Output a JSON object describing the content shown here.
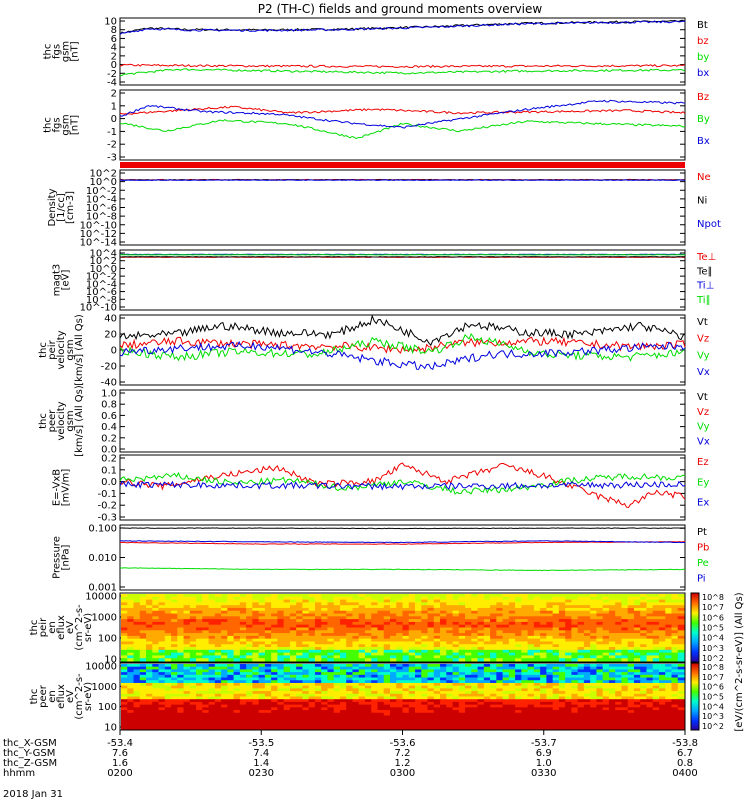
{
  "title": "P2 (TH-C) fields and ground moments overview",
  "date_label": "2018 Jan 31",
  "colors": {
    "black": "#000000",
    "red": "#ee0000",
    "green": "#00dd00",
    "blue": "#0000dd",
    "frame": "#000000"
  },
  "colorbar": {
    "label": "[eV/(cm^2-s-sr-eV)] (All Qs)",
    "ticks_top": [
      "10^8",
      "10^7",
      "10^6",
      "10^5",
      "10^4",
      "10^3",
      "10^2"
    ],
    "ticks_bottom": [
      "10^8",
      "10^7",
      "10^6",
      "10^5",
      "10^4",
      "10^3",
      "10^2"
    ]
  },
  "chart_data": [
    {
      "type": "line",
      "id": "fgs",
      "ylabel": [
        "thc",
        "fgs",
        "gsm",
        "[nT]"
      ],
      "yticks": [
        "10",
        "8",
        "6",
        "4",
        "2",
        "0",
        "-2",
        "-4"
      ],
      "ylim": [
        -4,
        10.5
      ],
      "series": [
        {
          "name": "Bt",
          "color": "black",
          "x": [
            0,
            0.05,
            0.12,
            0.25,
            0.4,
            0.55,
            0.7,
            0.85,
            1.0
          ],
          "y": [
            7.2,
            8.3,
            8.0,
            7.9,
            8.1,
            8.6,
            9.3,
            9.6,
            9.8
          ]
        },
        {
          "name": "bz",
          "color": "red",
          "x": [
            0,
            0.25,
            0.5,
            0.75,
            1.0
          ],
          "y": [
            0.3,
            0.1,
            0.0,
            0.1,
            0.2
          ]
        },
        {
          "name": "by",
          "color": "green",
          "x": [
            0,
            0.1,
            0.3,
            0.5,
            0.7,
            0.9,
            1.0
          ],
          "y": [
            -1.8,
            -0.6,
            -1.0,
            -1.4,
            -1.0,
            -0.8,
            -0.8
          ]
        },
        {
          "name": "bx",
          "color": "blue",
          "x": [
            0,
            0.05,
            0.12,
            0.25,
            0.4,
            0.55,
            0.7,
            0.85,
            1.0
          ],
          "y": [
            7.0,
            8.2,
            7.9,
            7.8,
            8.0,
            8.5,
            9.2,
            9.5,
            9.7
          ]
        }
      ]
    },
    {
      "type": "line",
      "id": "fgs_dsl",
      "ylabel": [
        "thc",
        "fgs",
        "gsm",
        "[nT]"
      ],
      "yticks": [
        "2",
        "1",
        "0",
        "-1",
        "-2",
        "-3"
      ],
      "ylim": [
        -3.6,
        2.2
      ],
      "series": [
        {
          "name": "Bz",
          "color": "red",
          "x": [
            0,
            0.1,
            0.2,
            0.3,
            0.45,
            0.6,
            0.75,
            0.9,
            1.0
          ],
          "y": [
            0.2,
            0.5,
            0.8,
            0.3,
            0.6,
            0.3,
            0.4,
            0.5,
            0.3
          ]
        },
        {
          "name": "By",
          "color": "green",
          "x": [
            0,
            0.08,
            0.18,
            0.3,
            0.42,
            0.5,
            0.6,
            0.72,
            0.85,
            1.0
          ],
          "y": [
            -0.5,
            -1.2,
            -0.3,
            -0.6,
            -1.8,
            -0.6,
            -1.2,
            -0.4,
            -0.6,
            -0.8
          ]
        },
        {
          "name": "Bx",
          "color": "blue",
          "x": [
            0,
            0.05,
            0.15,
            0.28,
            0.4,
            0.5,
            0.6,
            0.72,
            0.85,
            1.0
          ],
          "y": [
            0.0,
            0.9,
            0.4,
            0.2,
            -0.5,
            -0.9,
            -0.2,
            0.6,
            1.3,
            1.1
          ]
        }
      ]
    },
    {
      "type": "line",
      "id": "density",
      "ylabel": [
        "Density",
        "[1/cc]",
        "[cm-3]"
      ],
      "yticks": [
        "10^2",
        "10^0",
        "10^-2",
        "10^-4",
        "10^-6",
        "10^-8",
        "10^-10",
        "10^-12",
        "10^-14"
      ],
      "ylim": [
        -14.5,
        2.5
      ],
      "series": [
        {
          "name": "Ne",
          "color": "red",
          "x": [
            0,
            1.0
          ],
          "y": [
            0.3,
            0.3
          ]
        },
        {
          "name": "Ni",
          "color": "black",
          "x": [
            0,
            1.0
          ],
          "y": [
            0.25,
            0.25
          ]
        },
        {
          "name": "Npot",
          "color": "blue",
          "x": [
            0,
            1.0
          ],
          "y": [
            0.2,
            0.2
          ]
        }
      ]
    },
    {
      "type": "line",
      "id": "temperature",
      "ylabel": [
        "magt3",
        "[eV]"
      ],
      "yticks": [
        "10^4",
        "10^2",
        "10^0",
        "10^-2",
        "10^-4",
        "10^-6",
        "10^-8",
        "10^-10"
      ],
      "ylim": [
        -10.5,
        4.5
      ],
      "series": [
        {
          "name": "Te⊥",
          "color": "red",
          "x": [
            0,
            1.0
          ],
          "y": [
            2.7,
            2.7
          ]
        },
        {
          "name": "Te∥",
          "color": "black",
          "x": [
            0,
            1.0
          ],
          "y": [
            2.8,
            2.8
          ]
        },
        {
          "name": "Ti⊥",
          "color": "blue",
          "x": [
            0,
            1.0
          ],
          "y": [
            3.4,
            3.4
          ]
        },
        {
          "name": "Ti∥",
          "color": "green",
          "x": [
            0,
            1.0
          ],
          "y": [
            3.3,
            3.3
          ]
        }
      ]
    },
    {
      "type": "line",
      "id": "peir_velocity",
      "ylabel": [
        "thc",
        "peir",
        "velocity",
        "gsm",
        "[km/s] (All Qs)"
      ],
      "yticks": [
        "40",
        "20",
        "0",
        "-20",
        "-40"
      ],
      "ylim": [
        -40,
        40
      ],
      "series": [
        {
          "name": "Vt",
          "color": "black",
          "x": [
            0,
            0.1,
            0.18,
            0.28,
            0.38,
            0.45,
            0.55,
            0.62,
            0.72,
            0.82,
            0.92,
            1.0
          ],
          "y": [
            15,
            18,
            28,
            20,
            18,
            35,
            10,
            30,
            20,
            18,
            28,
            15
          ]
        },
        {
          "name": "Vz",
          "color": "red",
          "x": [
            0,
            0.1,
            0.25,
            0.4,
            0.52,
            0.6,
            0.75,
            0.9,
            1.0
          ],
          "y": [
            5,
            10,
            6,
            4,
            0,
            8,
            10,
            4,
            6
          ]
        },
        {
          "name": "Vy",
          "color": "green",
          "x": [
            0,
            0.1,
            0.2,
            0.35,
            0.45,
            0.55,
            0.62,
            0.75,
            0.9,
            1.0
          ],
          "y": [
            0,
            -8,
            -2,
            -5,
            10,
            -2,
            15,
            -5,
            -8,
            -3
          ]
        },
        {
          "name": "Vx",
          "color": "blue",
          "x": [
            0,
            0.12,
            0.25,
            0.38,
            0.48,
            0.55,
            0.65,
            0.78,
            0.9,
            1.0
          ],
          "y": [
            -2,
            3,
            5,
            -5,
            -15,
            -20,
            -5,
            -3,
            2,
            5
          ]
        }
      ]
    },
    {
      "type": "line",
      "id": "peer_velocity",
      "ylabel": [
        "thc",
        "peer",
        "velocity",
        "gsm",
        "[km/s] (All Qs)"
      ],
      "yticks": [
        "1.0",
        "0.8",
        "0.6",
        "0.4",
        "0.2",
        "0.0"
      ],
      "ylim": [
        0.0,
        1.0
      ],
      "series": [
        {
          "name": "Vt",
          "color": "black",
          "x": [],
          "y": []
        },
        {
          "name": "Vz",
          "color": "red",
          "x": [],
          "y": []
        },
        {
          "name": "Vy",
          "color": "green",
          "x": [],
          "y": []
        },
        {
          "name": "Vx",
          "color": "blue",
          "x": [],
          "y": []
        }
      ]
    },
    {
      "type": "line",
      "id": "efield",
      "ylabel": [
        "E=-VxB",
        "[mV/m]"
      ],
      "yticks": [
        "0.2",
        "0.1",
        "0.0",
        "-0.1",
        "-0.2",
        "-0.3"
      ],
      "ylim": [
        -0.32,
        0.3
      ],
      "series": [
        {
          "name": "Ez",
          "color": "red",
          "x": [
            0,
            0.08,
            0.15,
            0.28,
            0.35,
            0.45,
            0.5,
            0.58,
            0.68,
            0.75,
            0.85,
            0.9,
            0.95,
            1.0
          ],
          "y": [
            0.05,
            0.0,
            0.08,
            0.18,
            0.02,
            0.05,
            0.2,
            0.05,
            0.2,
            0.1,
            -0.1,
            -0.18,
            -0.05,
            -0.1
          ]
        },
        {
          "name": "Ey",
          "color": "green",
          "x": [
            0,
            0.1,
            0.2,
            0.3,
            0.4,
            0.5,
            0.6,
            0.7,
            0.8,
            0.9,
            1.0
          ],
          "y": [
            0.06,
            0.1,
            0.03,
            0.06,
            -0.02,
            0.05,
            -0.05,
            -0.02,
            0.06,
            0.1,
            0.08
          ]
        },
        {
          "name": "Ex",
          "color": "blue",
          "x": [
            0,
            0.25,
            0.5,
            0.75,
            1.0
          ],
          "y": [
            0.02,
            0.01,
            0.0,
            0.01,
            0.02
          ]
        }
      ]
    },
    {
      "type": "line",
      "id": "pressure",
      "ylabel": [
        "Pressure",
        "[nPa]"
      ],
      "yticks": [
        "0.100",
        "0.010",
        "0.001"
      ],
      "ylim": [
        -3.0,
        -0.95
      ],
      "series": [
        {
          "name": "Pt",
          "color": "black",
          "x": [
            0,
            0.25,
            0.5,
            0.75,
            1.0
          ],
          "y": [
            -1.05,
            -1.05,
            -1.06,
            -1.05,
            -1.05
          ]
        },
        {
          "name": "Pb",
          "color": "red",
          "x": [
            0,
            0.25,
            0.5,
            0.75,
            1.0
          ],
          "y": [
            -1.5,
            -1.55,
            -1.55,
            -1.5,
            -1.48
          ]
        },
        {
          "name": "Pe",
          "color": "green",
          "x": [
            0,
            0.25,
            0.5,
            0.75,
            1.0
          ],
          "y": [
            -2.3,
            -2.35,
            -2.35,
            -2.38,
            -2.35
          ]
        },
        {
          "name": "Pi",
          "color": "blue",
          "x": [
            0,
            0.25,
            0.5,
            0.75,
            1.0
          ],
          "y": [
            -1.45,
            -1.48,
            -1.5,
            -1.45,
            -1.5
          ]
        }
      ]
    },
    {
      "type": "heatmap",
      "id": "peir_eflux",
      "ylabel": [
        "thc",
        "peir",
        "en",
        "eflux",
        "eV",
        "(cm^2-s-",
        "sr-eV)"
      ],
      "yticks": [
        "10000",
        "1000",
        "100",
        "10"
      ]
    },
    {
      "type": "heatmap",
      "id": "peer_eflux",
      "ylabel": [
        "thc",
        "peer",
        "en",
        "eflux",
        "eV",
        "(cm^2-s-",
        "sr-eV)"
      ],
      "yticks": [
        "10000",
        "1000",
        "100",
        "10"
      ]
    }
  ],
  "xaxis": {
    "row_labels": [
      "thc_X-GSM",
      "thc_Y-GSM",
      "thc_Z-GSM",
      "hhmm"
    ],
    "columns": [
      [
        "-53.4",
        "7.6",
        "1.6",
        "0200"
      ],
      [
        "-53.5",
        "7.4",
        "1.4",
        "0230"
      ],
      [
        "-53.6",
        "7.2",
        "1.2",
        "0300"
      ],
      [
        "-53.7",
        "6.9",
        "1.0",
        "0330"
      ],
      [
        "-53.8",
        "6.7",
        "0.8",
        "0400"
      ]
    ]
  }
}
